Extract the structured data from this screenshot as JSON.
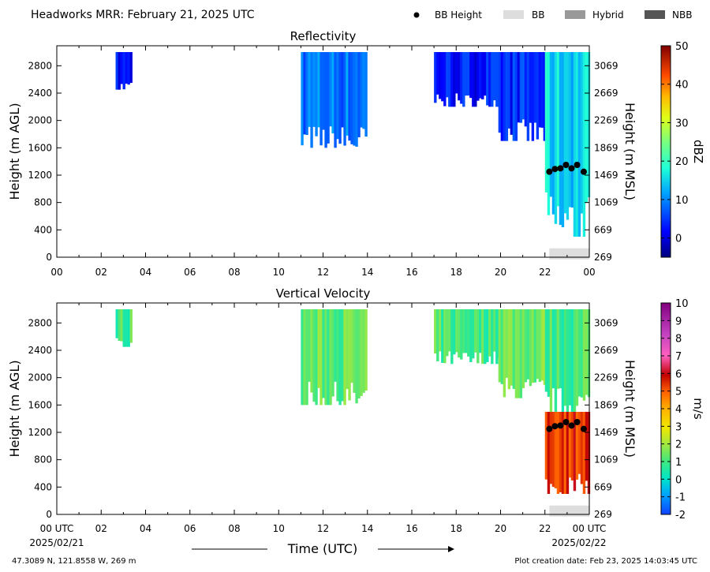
{
  "header": {
    "title": "Headworks MRR:  February 21, 2025 UTC",
    "legend": [
      {
        "label": "BB Height",
        "kind": "dot",
        "color": "#000000"
      },
      {
        "label": "BB",
        "kind": "box",
        "color": "#dddddd"
      },
      {
        "label": "Hybrid",
        "kind": "box",
        "color": "#999999"
      },
      {
        "label": "NBB",
        "kind": "box",
        "color": "#555555"
      }
    ]
  },
  "footer": {
    "location": "47.3089 N, 121.8558 W, 269 m",
    "creation": "Plot creation date: Feb 23, 2025 14:03:45 UTC",
    "xaxis_title": "Time (UTC)",
    "start_date": "2025/02/21",
    "end_date": "2025/02/22"
  },
  "chart_data": [
    {
      "type": "heatmap",
      "title": "Reflectivity",
      "ylabel": "Height (m AGL)",
      "y2label": "Height (m MSL)",
      "colorbar_label": "dBZ",
      "xlim": [
        0,
        24
      ],
      "ylim": [
        0,
        3000
      ],
      "y2lim": [
        269,
        3269
      ],
      "x_ticks": [
        "00",
        "02",
        "04",
        "06",
        "08",
        "10",
        "12",
        "14",
        "16",
        "18",
        "20",
        "22",
        "00"
      ],
      "y_ticks": [
        0,
        400,
        800,
        1200,
        1600,
        2000,
        2400,
        2800
      ],
      "y2_ticks": [
        269,
        669,
        1069,
        1469,
        1869,
        2269,
        2669,
        3069
      ],
      "colorbar_range": [
        -5,
        50
      ],
      "colorbar_ticks": [
        0,
        10,
        20,
        30,
        40,
        50
      ],
      "echo_segments": [
        {
          "start_hr": 2.65,
          "end_hr": 3.3,
          "base_m": 2450,
          "top_m": 3000,
          "value": 2
        },
        {
          "start_hr": 11.0,
          "end_hr": 13.9,
          "base_m": 1600,
          "top_m": 3000,
          "value": 9
        },
        {
          "start_hr": 17.0,
          "end_hr": 19.9,
          "base_m": 2200,
          "top_m": 3000,
          "value": 3
        },
        {
          "start_hr": 19.9,
          "end_hr": 22.0,
          "base_m": 1700,
          "top_m": 3000,
          "value": 4
        },
        {
          "start_hr": 22.0,
          "end_hr": 24.0,
          "base_m": 300,
          "top_m": 3000,
          "value": 15
        }
      ],
      "bb_height": [
        {
          "x": 22.2,
          "y": 1250
        },
        {
          "x": 22.45,
          "y": 1290
        },
        {
          "x": 22.7,
          "y": 1300
        },
        {
          "x": 22.95,
          "y": 1350
        },
        {
          "x": 23.2,
          "y": 1300
        },
        {
          "x": 23.45,
          "y": 1350
        },
        {
          "x": 23.75,
          "y": 1250
        }
      ],
      "bb_bar": {
        "start_hr": 22.2,
        "end_hr": 24.0,
        "type": "BB"
      }
    },
    {
      "type": "heatmap",
      "title": "Vertical Velocity",
      "ylabel": "Height (m AGL)",
      "y2label": "Height (m MSL)",
      "colorbar_label": "m/s",
      "xlim": [
        0,
        24
      ],
      "ylim": [
        0,
        3000
      ],
      "y2lim": [
        269,
        3269
      ],
      "x_ticks": [
        "00 UTC",
        "02",
        "04",
        "06",
        "08",
        "10",
        "12",
        "14",
        "16",
        "18",
        "20",
        "22",
        "00 UTC"
      ],
      "y_ticks": [
        0,
        400,
        800,
        1200,
        1600,
        2000,
        2400,
        2800
      ],
      "y2_ticks": [
        269,
        669,
        1069,
        1469,
        1869,
        2269,
        2669,
        3069
      ],
      "colorbar_range": [
        -2,
        10
      ],
      "colorbar_ticks": [
        -2,
        -1,
        0,
        1,
        2,
        3,
        4,
        5,
        6,
        7,
        8,
        9,
        10
      ],
      "echo_segments": [
        {
          "start_hr": 2.65,
          "end_hr": 3.3,
          "base_m": 2450,
          "top_m": 3000,
          "value": 1
        },
        {
          "start_hr": 11.0,
          "end_hr": 13.9,
          "base_m": 1600,
          "top_m": 3000,
          "value": 1.3
        },
        {
          "start_hr": 17.0,
          "end_hr": 19.9,
          "base_m": 2200,
          "top_m": 3000,
          "value": 1
        },
        {
          "start_hr": 19.9,
          "end_hr": 22.0,
          "base_m": 1700,
          "top_m": 3000,
          "value": 1.5
        },
        {
          "start_hr": 22.0,
          "end_hr": 24.0,
          "base_m": 1500,
          "top_m": 3000,
          "value": 1
        },
        {
          "start_hr": 22.0,
          "end_hr": 24.0,
          "base_m": 300,
          "top_m": 1500,
          "value": 5.5
        }
      ],
      "bb_height": [
        {
          "x": 22.2,
          "y": 1250
        },
        {
          "x": 22.45,
          "y": 1290
        },
        {
          "x": 22.7,
          "y": 1300
        },
        {
          "x": 22.95,
          "y": 1350
        },
        {
          "x": 23.2,
          "y": 1300
        },
        {
          "x": 23.45,
          "y": 1350
        },
        {
          "x": 23.75,
          "y": 1250
        }
      ],
      "bb_bar": {
        "start_hr": 22.2,
        "end_hr": 24.0,
        "type": "BB"
      }
    }
  ]
}
